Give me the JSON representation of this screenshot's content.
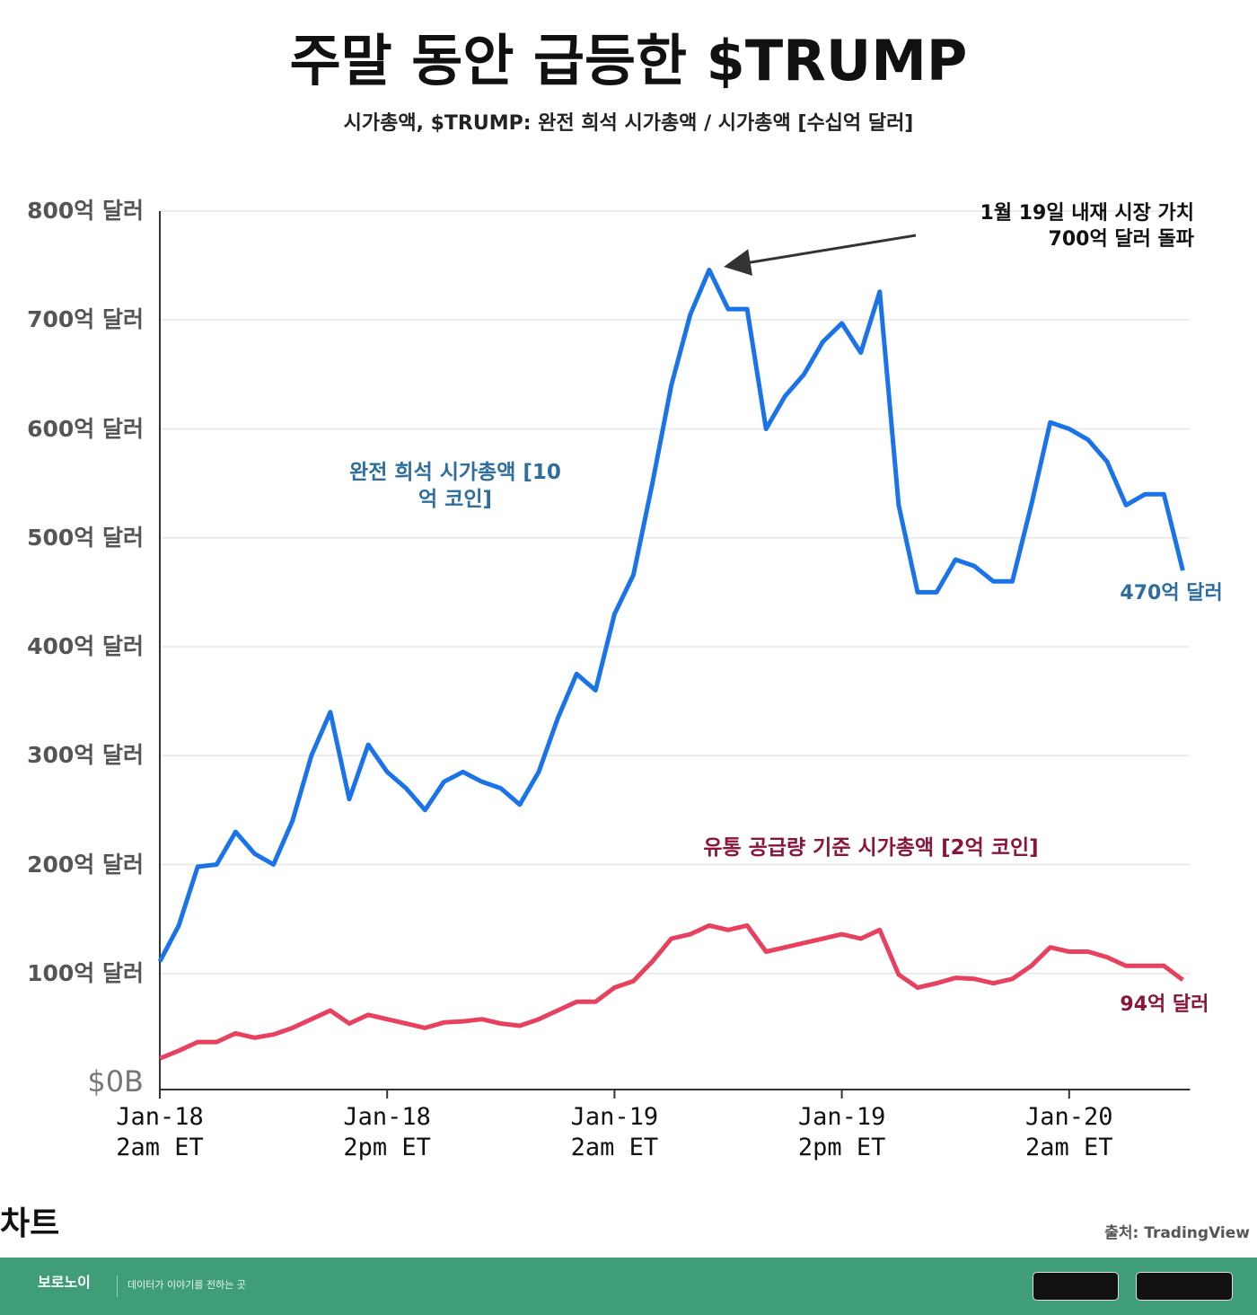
{
  "chart_data": {
    "type": "line",
    "title": "주말 동안 급등한 $TRUMP",
    "subtitle": "시가총액, $TRUMP: 완전 희석 시가총액 / 시가총액 [수십억 달러]",
    "annotation": "1월 19일 내재 시장 가치\n700억 달러 돌파",
    "categories": [
      "Jan-18\n2am ET",
      null,
      null,
      null,
      null,
      null,
      null,
      null,
      null,
      null,
      null,
      null,
      "Jan-18\n2pm ET",
      null,
      null,
      null,
      null,
      null,
      null,
      null,
      null,
      null,
      null,
      null,
      "Jan-19\n2am ET",
      null,
      null,
      null,
      null,
      null,
      null,
      null,
      null,
      null,
      null,
      null,
      "Jan-19\n2pm ET",
      null,
      null,
      null,
      null,
      null,
      null,
      null,
      null,
      null,
      null,
      null,
      "Jan-20\n2am ET",
      null,
      null,
      null,
      null,
      null,
      null
    ],
    "series": [
      {
        "name": "완전 희석 시가총액 [10\n억 코인]",
        "color": "#1a73e8",
        "values": [
          11.1,
          14.4,
          19.8,
          20,
          23,
          21,
          20,
          24,
          30,
          34,
          26,
          31,
          28.5,
          27,
          25,
          27.6,
          28.5,
          27.6,
          27,
          25.5,
          28.5,
          33.4,
          37.5,
          36,
          43,
          46.6,
          55,
          64,
          70.5,
          74.6,
          71,
          71,
          60,
          63,
          65,
          68,
          69.7,
          67,
          72.6,
          53,
          45,
          45,
          48,
          47.4,
          46,
          46,
          53,
          60.6,
          60,
          59,
          57,
          53,
          54,
          54,
          47
        ],
        "value_labels": [
          null,
          null,
          null,
          null,
          null,
          null,
          null,
          null,
          null,
          null,
          null,
          null,
          null,
          null,
          null,
          null,
          null,
          null,
          null,
          null,
          null,
          null,
          null,
          null,
          null,
          null,
          null,
          null,
          null,
          null,
          null,
          null,
          null,
          null,
          null,
          null,
          null,
          null,
          null,
          null,
          null,
          null,
          null,
          null,
          null,
          null,
          null,
          null,
          null,
          null,
          null,
          null,
          null,
          null,
          "470억 달러"
        ]
      },
      {
        "name": "유통 공급량 기준 시가총액 [2억 코인]",
        "color": "#e8405f",
        "values": [
          2.2,
          2.9,
          3.7,
          3.7,
          4.5,
          4.1,
          4.4,
          5,
          5.8,
          6.6,
          5.4,
          6.2,
          5.8,
          5.4,
          5,
          5.5,
          5.6,
          5.8,
          5.4,
          5.2,
          5.8,
          6.6,
          7.4,
          7.4,
          8.7,
          9.3,
          11.1,
          13.2,
          13.6,
          14.4,
          14,
          14.4,
          12,
          12.4,
          12.8,
          13.2,
          13.6,
          13.2,
          14,
          9.9,
          8.7,
          9.1,
          9.6,
          9.5,
          9.1,
          9.5,
          10.7,
          12.4,
          12,
          12,
          11.5,
          10.7,
          10.7,
          10.7,
          9.4
        ],
        "value_labels": [
          null,
          null,
          null,
          null,
          null,
          null,
          null,
          null,
          null,
          null,
          null,
          null,
          null,
          null,
          null,
          null,
          null,
          null,
          null,
          null,
          null,
          null,
          null,
          null,
          null,
          null,
          null,
          null,
          null,
          null,
          null,
          null,
          null,
          null,
          null,
          null,
          null,
          null,
          null,
          null,
          null,
          null,
          null,
          null,
          null,
          null,
          null,
          null,
          null,
          null,
          null,
          null,
          null,
          null,
          "94억 달러"
        ]
      }
    ],
    "ylim": [
      0,
      80
    ],
    "yticks": [
      {
        "value": 0,
        "label": "$0B"
      },
      {
        "value": 10,
        "label": "100억 달러"
      },
      {
        "value": 20,
        "label": "200억 달러"
      },
      {
        "value": 30,
        "label": "300억 달러"
      },
      {
        "value": 40,
        "label": "400억 달러"
      },
      {
        "value": 50,
        "label": "500억 달러"
      },
      {
        "value": 60,
        "label": "600억 달러"
      },
      {
        "value": 70,
        "label": "700억 달러"
      },
      {
        "value": 80,
        "label": "800억 달러"
      }
    ],
    "grid": true
  },
  "section_label": "차트",
  "source": "출처: TradingView",
  "footer": {
    "brand": "보로노이",
    "tagline": "데이터가 이야기를 전하는 곳"
  }
}
